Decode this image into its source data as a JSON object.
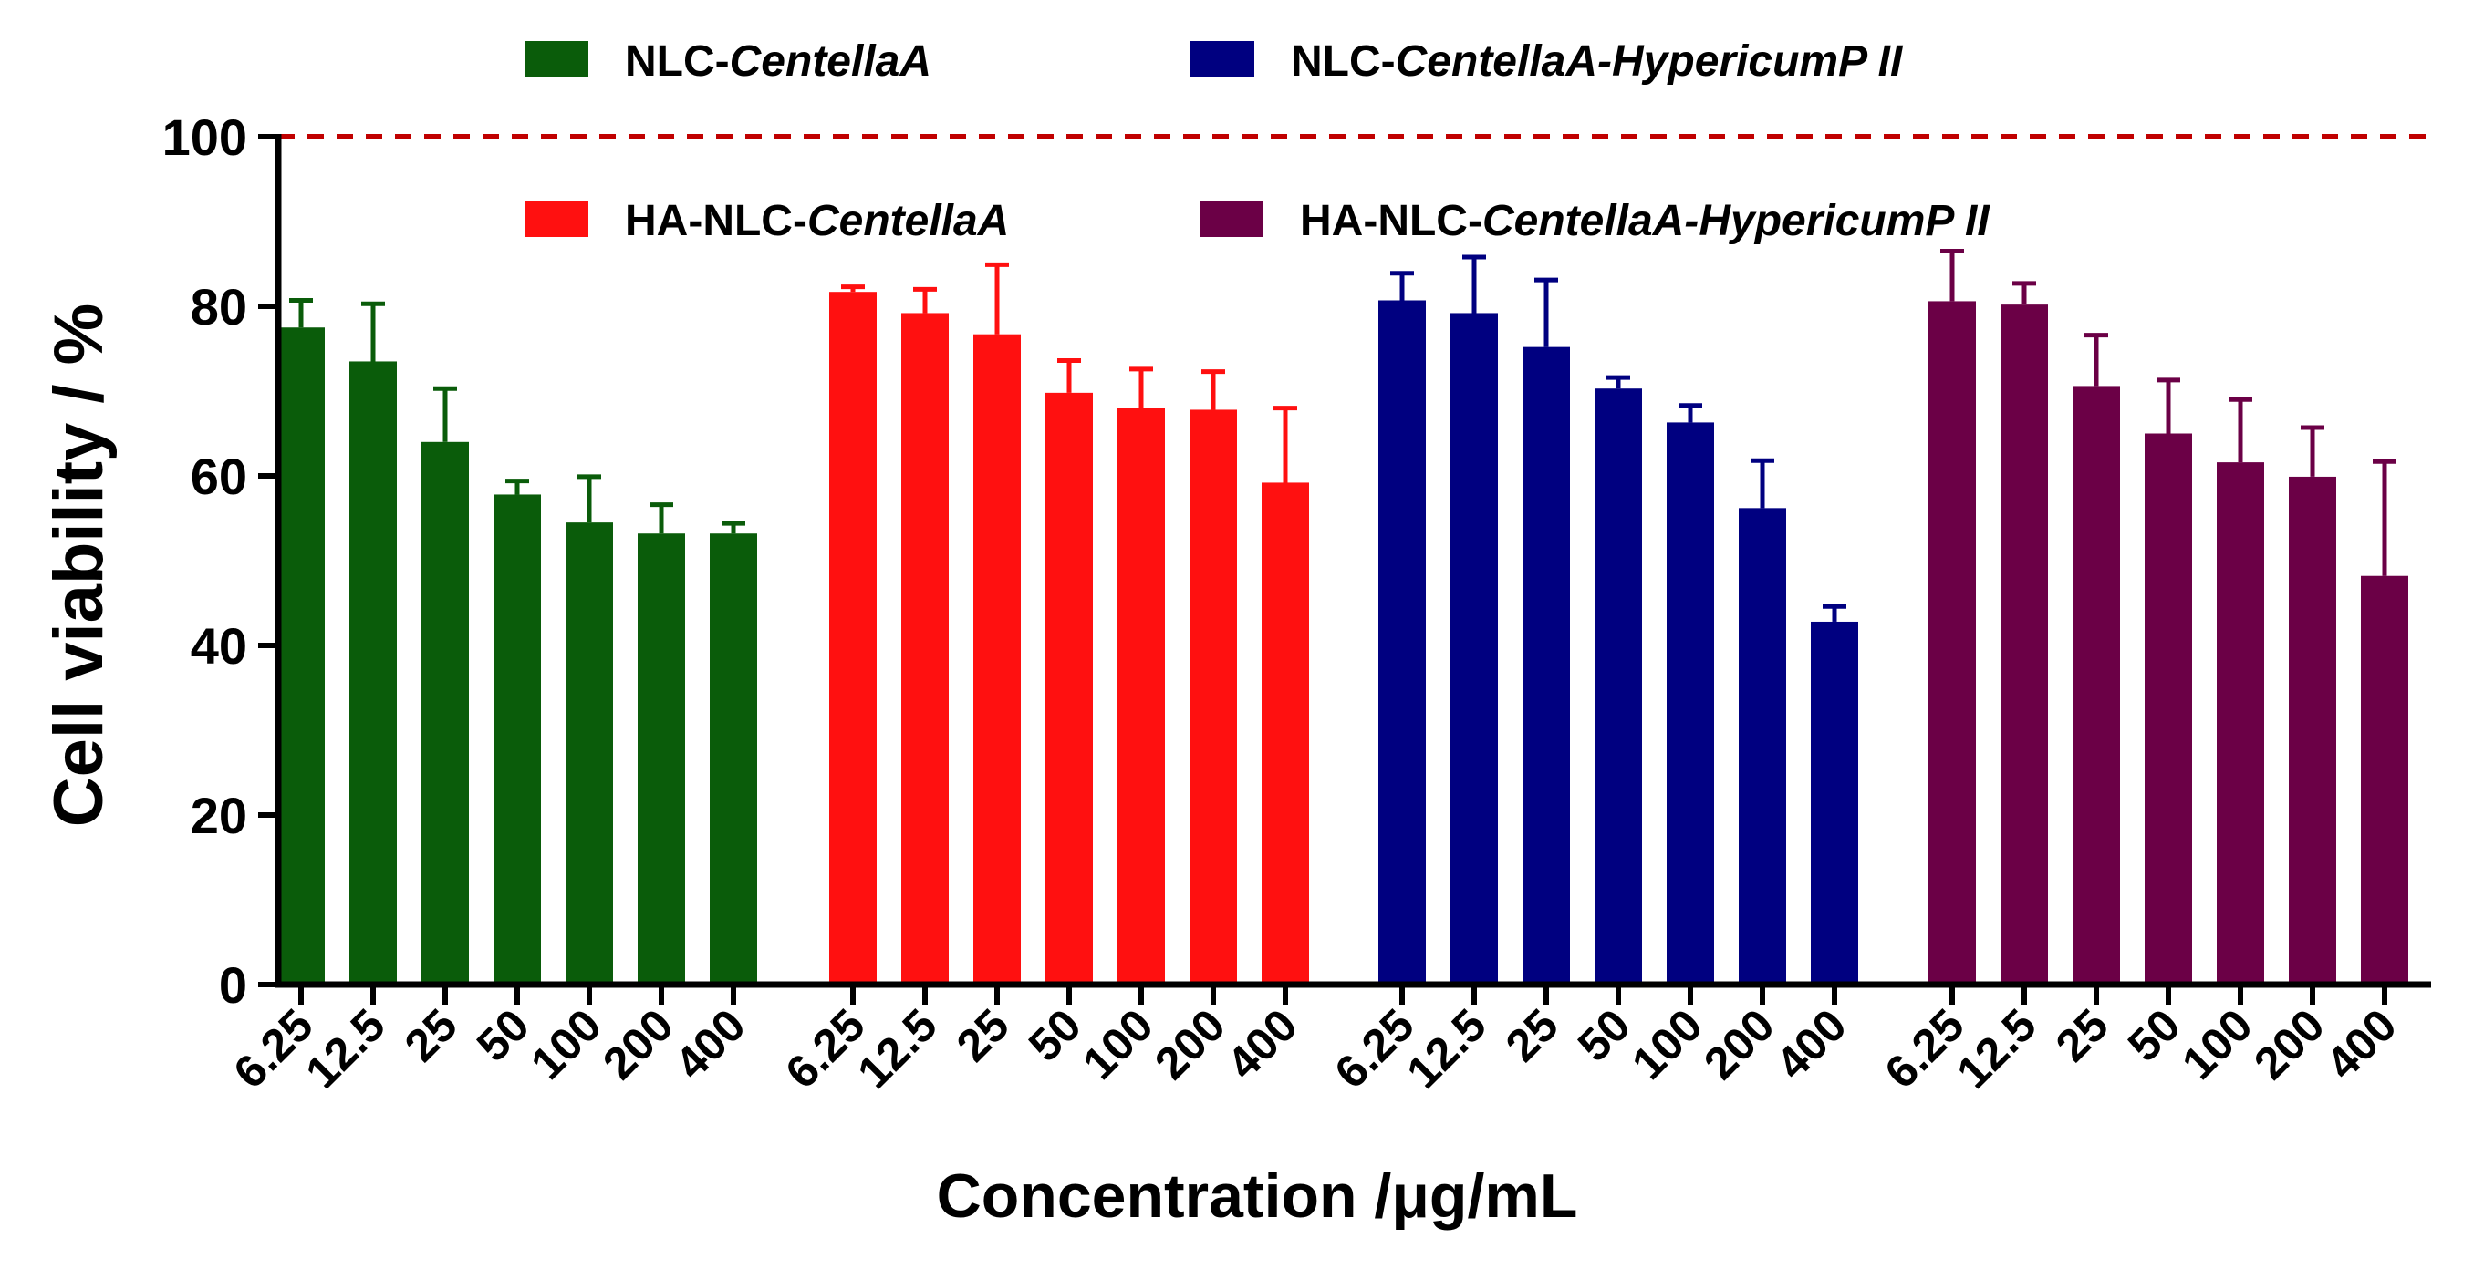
{
  "chart_data": {
    "type": "bar",
    "ylabel": "Cell viability / %",
    "xlabel": "Concentration /μg/mL",
    "ylim": [
      0,
      100
    ],
    "yticks": [
      0,
      20,
      40,
      60,
      80,
      100
    ],
    "reference_line": {
      "y": 100,
      "style": "dashed",
      "color": "#c00000"
    },
    "categories": [
      "6.25",
      "12.5",
      "25",
      "50",
      "100",
      "200",
      "400"
    ],
    "series": [
      {
        "name_prefix": "NLC-",
        "name_italic": "CentellaA",
        "name_suffix": "",
        "color": "#0a5c0a",
        "values": [
          77.5,
          73.5,
          64,
          57.8,
          54.5,
          53.2,
          53.2
        ],
        "errors": [
          3.2,
          6.8,
          6.3,
          1.6,
          5.4,
          3.4,
          1.2
        ]
      },
      {
        "name_prefix": "HA-NLC-",
        "name_italic": "CentellaA",
        "name_suffix": "",
        "color": "#ff1010",
        "values": [
          81.7,
          79.2,
          76.7,
          69.8,
          68,
          67.8,
          59.2
        ],
        "errors": [
          0.6,
          2.8,
          8.2,
          3.8,
          4.6,
          4.5,
          8.8
        ]
      },
      {
        "name_prefix": "NLC-",
        "name_italic": "CentellaA-HypericumP",
        "name_suffix": " II",
        "color": "#000080",
        "values": [
          80.7,
          79.2,
          75.2,
          70.3,
          66.3,
          56.2,
          42.8
        ],
        "errors": [
          3.2,
          6.6,
          7.9,
          1.3,
          2,
          5.6,
          1.8
        ]
      },
      {
        "name_prefix": "HA-NLC-",
        "name_italic": "CentellaA-HypericumP",
        "name_suffix": " II",
        "color": "#6b0046",
        "values": [
          80.6,
          80.2,
          70.6,
          65,
          61.6,
          59.9,
          48.2
        ],
        "errors": [
          5.9,
          2.5,
          6,
          6.3,
          7.4,
          5.8,
          13.5
        ]
      }
    ],
    "legend": {
      "placement": "top, two rows inside plot",
      "order": [
        0,
        2,
        1,
        3
      ]
    },
    "grid": false
  }
}
